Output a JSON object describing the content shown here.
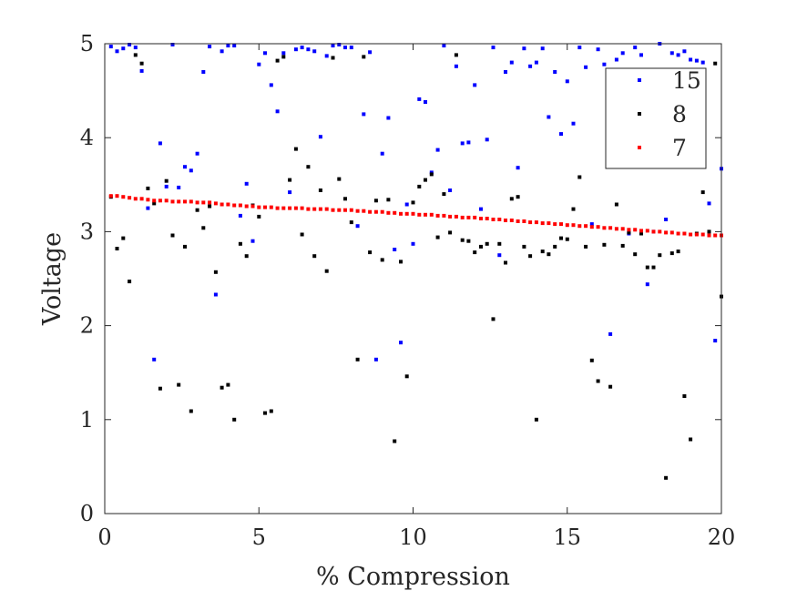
{
  "chart_data": {
    "type": "scatter",
    "xlabel": "% Compression",
    "ylabel": "Voltage",
    "xlim": [
      0,
      20
    ],
    "ylim": [
      0,
      5
    ],
    "xticks": [
      0,
      5,
      10,
      15,
      20
    ],
    "yticks": [
      0,
      1,
      2,
      3,
      4,
      5
    ],
    "xtick_labels": [
      "0",
      "5",
      "10",
      "15",
      "20"
    ],
    "ytick_labels": [
      "0",
      "1",
      "2",
      "3",
      "4",
      "5"
    ],
    "grid": false,
    "box": true,
    "legend": {
      "position": "top-right",
      "entries": [
        "15",
        "8",
        "7"
      ]
    },
    "series": [
      {
        "name": "15",
        "color": "#0000ff",
        "points": [
          [
            0.2,
            4.97
          ],
          [
            0.4,
            4.92
          ],
          [
            0.6,
            4.95
          ],
          [
            0.8,
            4.99
          ],
          [
            1.0,
            4.96
          ],
          [
            1.2,
            4.71
          ],
          [
            1.4,
            3.25
          ],
          [
            1.6,
            1.64
          ],
          [
            1.8,
            3.94
          ],
          [
            2.0,
            3.48
          ],
          [
            2.2,
            4.99
          ],
          [
            2.4,
            3.47
          ],
          [
            2.6,
            3.69
          ],
          [
            2.8,
            3.65
          ],
          [
            3.0,
            3.83
          ],
          [
            3.2,
            4.7
          ],
          [
            3.4,
            4.97
          ],
          [
            3.6,
            2.33
          ],
          [
            3.8,
            4.92
          ],
          [
            4.0,
            4.98
          ],
          [
            4.2,
            4.98
          ],
          [
            4.4,
            3.17
          ],
          [
            4.6,
            3.51
          ],
          [
            4.8,
            2.9
          ],
          [
            5.0,
            4.78
          ],
          [
            5.2,
            4.9
          ],
          [
            5.4,
            4.56
          ],
          [
            5.6,
            4.28
          ],
          [
            5.8,
            4.9
          ],
          [
            6.0,
            3.42
          ],
          [
            6.2,
            4.94
          ],
          [
            6.4,
            4.96
          ],
          [
            6.6,
            4.94
          ],
          [
            6.8,
            4.92
          ],
          [
            7.0,
            4.01
          ],
          [
            7.2,
            4.87
          ],
          [
            7.4,
            4.98
          ],
          [
            7.6,
            4.99
          ],
          [
            7.8,
            4.96
          ],
          [
            8.0,
            4.96
          ],
          [
            8.2,
            3.06
          ],
          [
            8.4,
            4.25
          ],
          [
            8.6,
            4.91
          ],
          [
            8.8,
            1.64
          ],
          [
            9.0,
            3.83
          ],
          [
            9.2,
            4.21
          ],
          [
            9.4,
            2.81
          ],
          [
            9.6,
            1.82
          ],
          [
            9.8,
            3.29
          ],
          [
            10.0,
            2.87
          ],
          [
            10.2,
            4.41
          ],
          [
            10.4,
            4.38
          ],
          [
            10.6,
            3.63
          ],
          [
            10.8,
            3.87
          ],
          [
            11.0,
            4.98
          ],
          [
            11.2,
            3.44
          ],
          [
            11.4,
            4.76
          ],
          [
            11.6,
            3.94
          ],
          [
            11.8,
            3.95
          ],
          [
            12.0,
            4.56
          ],
          [
            12.2,
            3.24
          ],
          [
            12.4,
            3.98
          ],
          [
            12.6,
            4.96
          ],
          [
            12.8,
            2.75
          ],
          [
            13.0,
            4.7
          ],
          [
            13.2,
            4.8
          ],
          [
            13.4,
            3.68
          ],
          [
            13.6,
            4.95
          ],
          [
            13.8,
            4.76
          ],
          [
            14.0,
            4.8
          ],
          [
            14.2,
            4.95
          ],
          [
            14.4,
            4.22
          ],
          [
            14.6,
            4.7
          ],
          [
            14.8,
            4.04
          ],
          [
            15.0,
            4.6
          ],
          [
            15.2,
            4.15
          ],
          [
            15.4,
            4.96
          ],
          [
            15.6,
            4.75
          ],
          [
            15.8,
            3.08
          ],
          [
            16.0,
            4.94
          ],
          [
            16.2,
            4.78
          ],
          [
            16.4,
            1.91
          ],
          [
            16.6,
            4.83
          ],
          [
            16.8,
            4.9
          ],
          [
            17.0,
            2.98
          ],
          [
            17.2,
            4.96
          ],
          [
            17.4,
            4.88
          ],
          [
            17.6,
            2.44
          ],
          [
            17.8,
            3.0
          ],
          [
            18.0,
            5.0
          ],
          [
            18.2,
            3.13
          ],
          [
            18.4,
            4.9
          ],
          [
            18.6,
            4.88
          ],
          [
            18.8,
            4.92
          ],
          [
            19.0,
            4.83
          ],
          [
            19.2,
            4.82
          ],
          [
            19.4,
            4.8
          ],
          [
            19.6,
            3.3
          ],
          [
            19.8,
            1.84
          ],
          [
            20.0,
            3.67
          ]
        ]
      },
      {
        "name": "8",
        "color": "#000000",
        "points": [
          [
            0.2,
            3.37
          ],
          [
            0.4,
            2.82
          ],
          [
            0.6,
            2.93
          ],
          [
            0.8,
            2.47
          ],
          [
            1.0,
            4.88
          ],
          [
            1.2,
            4.79
          ],
          [
            1.4,
            3.46
          ],
          [
            1.6,
            3.3
          ],
          [
            1.8,
            1.33
          ],
          [
            2.0,
            3.54
          ],
          [
            2.2,
            2.96
          ],
          [
            2.4,
            1.37
          ],
          [
            2.6,
            2.84
          ],
          [
            2.8,
            1.09
          ],
          [
            3.0,
            3.23
          ],
          [
            3.2,
            3.04
          ],
          [
            3.4,
            3.27
          ],
          [
            3.6,
            2.57
          ],
          [
            3.8,
            1.34
          ],
          [
            4.0,
            1.37
          ],
          [
            4.2,
            1.0
          ],
          [
            4.4,
            2.87
          ],
          [
            4.6,
            2.74
          ],
          [
            4.8,
            3.28
          ],
          [
            5.0,
            3.16
          ],
          [
            5.2,
            1.07
          ],
          [
            5.4,
            1.09
          ],
          [
            5.6,
            4.82
          ],
          [
            5.8,
            4.86
          ],
          [
            6.0,
            3.55
          ],
          [
            6.2,
            3.88
          ],
          [
            6.4,
            2.97
          ],
          [
            6.6,
            3.69
          ],
          [
            6.8,
            2.74
          ],
          [
            7.0,
            3.44
          ],
          [
            7.2,
            2.58
          ],
          [
            7.4,
            4.85
          ],
          [
            7.6,
            3.56
          ],
          [
            7.8,
            3.35
          ],
          [
            8.0,
            3.1
          ],
          [
            8.2,
            1.64
          ],
          [
            8.4,
            4.86
          ],
          [
            8.6,
            2.78
          ],
          [
            8.8,
            3.33
          ],
          [
            9.0,
            2.7
          ],
          [
            9.2,
            3.34
          ],
          [
            9.4,
            0.77
          ],
          [
            9.6,
            2.68
          ],
          [
            9.8,
            1.46
          ],
          [
            10.0,
            3.31
          ],
          [
            10.2,
            3.48
          ],
          [
            10.4,
            3.55
          ],
          [
            10.6,
            3.61
          ],
          [
            10.8,
            2.94
          ],
          [
            11.0,
            3.4
          ],
          [
            11.2,
            2.99
          ],
          [
            11.4,
            4.88
          ],
          [
            11.6,
            2.91
          ],
          [
            11.8,
            2.9
          ],
          [
            12.0,
            2.78
          ],
          [
            12.2,
            2.84
          ],
          [
            12.4,
            2.87
          ],
          [
            12.6,
            2.07
          ],
          [
            12.8,
            2.87
          ],
          [
            13.0,
            2.67
          ],
          [
            13.2,
            3.35
          ],
          [
            13.4,
            3.37
          ],
          [
            13.6,
            2.84
          ],
          [
            13.8,
            2.74
          ],
          [
            14.0,
            1.0
          ],
          [
            14.2,
            2.79
          ],
          [
            14.4,
            2.76
          ],
          [
            14.6,
            2.84
          ],
          [
            14.8,
            2.93
          ],
          [
            15.0,
            2.92
          ],
          [
            15.2,
            3.24
          ],
          [
            15.4,
            3.58
          ],
          [
            15.6,
            2.84
          ],
          [
            15.8,
            1.63
          ],
          [
            16.0,
            1.41
          ],
          [
            16.2,
            2.86
          ],
          [
            16.4,
            1.35
          ],
          [
            16.6,
            3.29
          ],
          [
            16.8,
            2.85
          ],
          [
            17.0,
            2.99
          ],
          [
            17.2,
            2.76
          ],
          [
            17.4,
            2.98
          ],
          [
            17.6,
            2.62
          ],
          [
            17.8,
            2.62
          ],
          [
            18.0,
            2.75
          ],
          [
            18.2,
            0.38
          ],
          [
            18.4,
            2.77
          ],
          [
            18.6,
            2.79
          ],
          [
            18.8,
            1.25
          ],
          [
            19.0,
            0.79
          ],
          [
            19.2,
            2.98
          ],
          [
            19.4,
            3.42
          ],
          [
            19.6,
            3.0
          ],
          [
            19.8,
            4.79
          ],
          [
            20.0,
            2.31
          ]
        ]
      },
      {
        "name": "7",
        "color": "#ff0000",
        "points": [
          [
            0.2,
            3.38
          ],
          [
            0.4,
            3.38
          ],
          [
            0.6,
            3.37
          ],
          [
            0.8,
            3.36
          ],
          [
            1.0,
            3.35
          ],
          [
            1.2,
            3.35
          ],
          [
            1.4,
            3.34
          ],
          [
            1.6,
            3.33
          ],
          [
            1.8,
            3.33
          ],
          [
            2.0,
            3.33
          ],
          [
            2.2,
            3.32
          ],
          [
            2.4,
            3.32
          ],
          [
            2.6,
            3.32
          ],
          [
            2.8,
            3.32
          ],
          [
            3.0,
            3.31
          ],
          [
            3.2,
            3.31
          ],
          [
            3.4,
            3.31
          ],
          [
            3.6,
            3.3
          ],
          [
            3.8,
            3.29
          ],
          [
            4.0,
            3.29
          ],
          [
            4.2,
            3.28
          ],
          [
            4.4,
            3.28
          ],
          [
            4.6,
            3.27
          ],
          [
            4.8,
            3.27
          ],
          [
            5.0,
            3.26
          ],
          [
            5.2,
            3.26
          ],
          [
            5.4,
            3.26
          ],
          [
            5.6,
            3.25
          ],
          [
            5.8,
            3.25
          ],
          [
            6.0,
            3.25
          ],
          [
            6.2,
            3.25
          ],
          [
            6.4,
            3.25
          ],
          [
            6.6,
            3.24
          ],
          [
            6.8,
            3.24
          ],
          [
            7.0,
            3.24
          ],
          [
            7.2,
            3.24
          ],
          [
            7.4,
            3.23
          ],
          [
            7.6,
            3.23
          ],
          [
            7.8,
            3.23
          ],
          [
            8.0,
            3.23
          ],
          [
            8.2,
            3.22
          ],
          [
            8.4,
            3.22
          ],
          [
            8.6,
            3.21
          ],
          [
            8.8,
            3.21
          ],
          [
            9.0,
            3.21
          ],
          [
            9.2,
            3.2
          ],
          [
            9.4,
            3.2
          ],
          [
            9.6,
            3.19
          ],
          [
            9.8,
            3.19
          ],
          [
            10.0,
            3.19
          ],
          [
            10.2,
            3.18
          ],
          [
            10.4,
            3.18
          ],
          [
            10.6,
            3.18
          ],
          [
            10.8,
            3.17
          ],
          [
            11.0,
            3.17
          ],
          [
            11.2,
            3.16
          ],
          [
            11.4,
            3.16
          ],
          [
            11.6,
            3.15
          ],
          [
            11.8,
            3.15
          ],
          [
            12.0,
            3.15
          ],
          [
            12.2,
            3.14
          ],
          [
            12.4,
            3.14
          ],
          [
            12.6,
            3.13
          ],
          [
            12.8,
            3.13
          ],
          [
            13.0,
            3.12
          ],
          [
            13.2,
            3.12
          ],
          [
            13.4,
            3.11
          ],
          [
            13.6,
            3.11
          ],
          [
            13.8,
            3.1
          ],
          [
            14.0,
            3.1
          ],
          [
            14.2,
            3.09
          ],
          [
            14.4,
            3.09
          ],
          [
            14.6,
            3.08
          ],
          [
            14.8,
            3.08
          ],
          [
            15.0,
            3.07
          ],
          [
            15.2,
            3.07
          ],
          [
            15.4,
            3.06
          ],
          [
            15.6,
            3.06
          ],
          [
            15.8,
            3.05
          ],
          [
            16.0,
            3.05
          ],
          [
            16.2,
            3.04
          ],
          [
            16.4,
            3.04
          ],
          [
            16.6,
            3.03
          ],
          [
            16.8,
            3.03
          ],
          [
            17.0,
            3.02
          ],
          [
            17.2,
            3.02
          ],
          [
            17.4,
            3.01
          ],
          [
            17.6,
            3.01
          ],
          [
            17.8,
            3.0
          ],
          [
            18.0,
            3.0
          ],
          [
            18.2,
            2.99
          ],
          [
            18.4,
            2.99
          ],
          [
            18.6,
            2.98
          ],
          [
            18.8,
            2.98
          ],
          [
            19.0,
            2.97
          ],
          [
            19.2,
            2.97
          ],
          [
            19.4,
            2.97
          ],
          [
            19.6,
            2.96
          ],
          [
            19.8,
            2.96
          ],
          [
            20.0,
            2.96
          ]
        ]
      }
    ]
  }
}
